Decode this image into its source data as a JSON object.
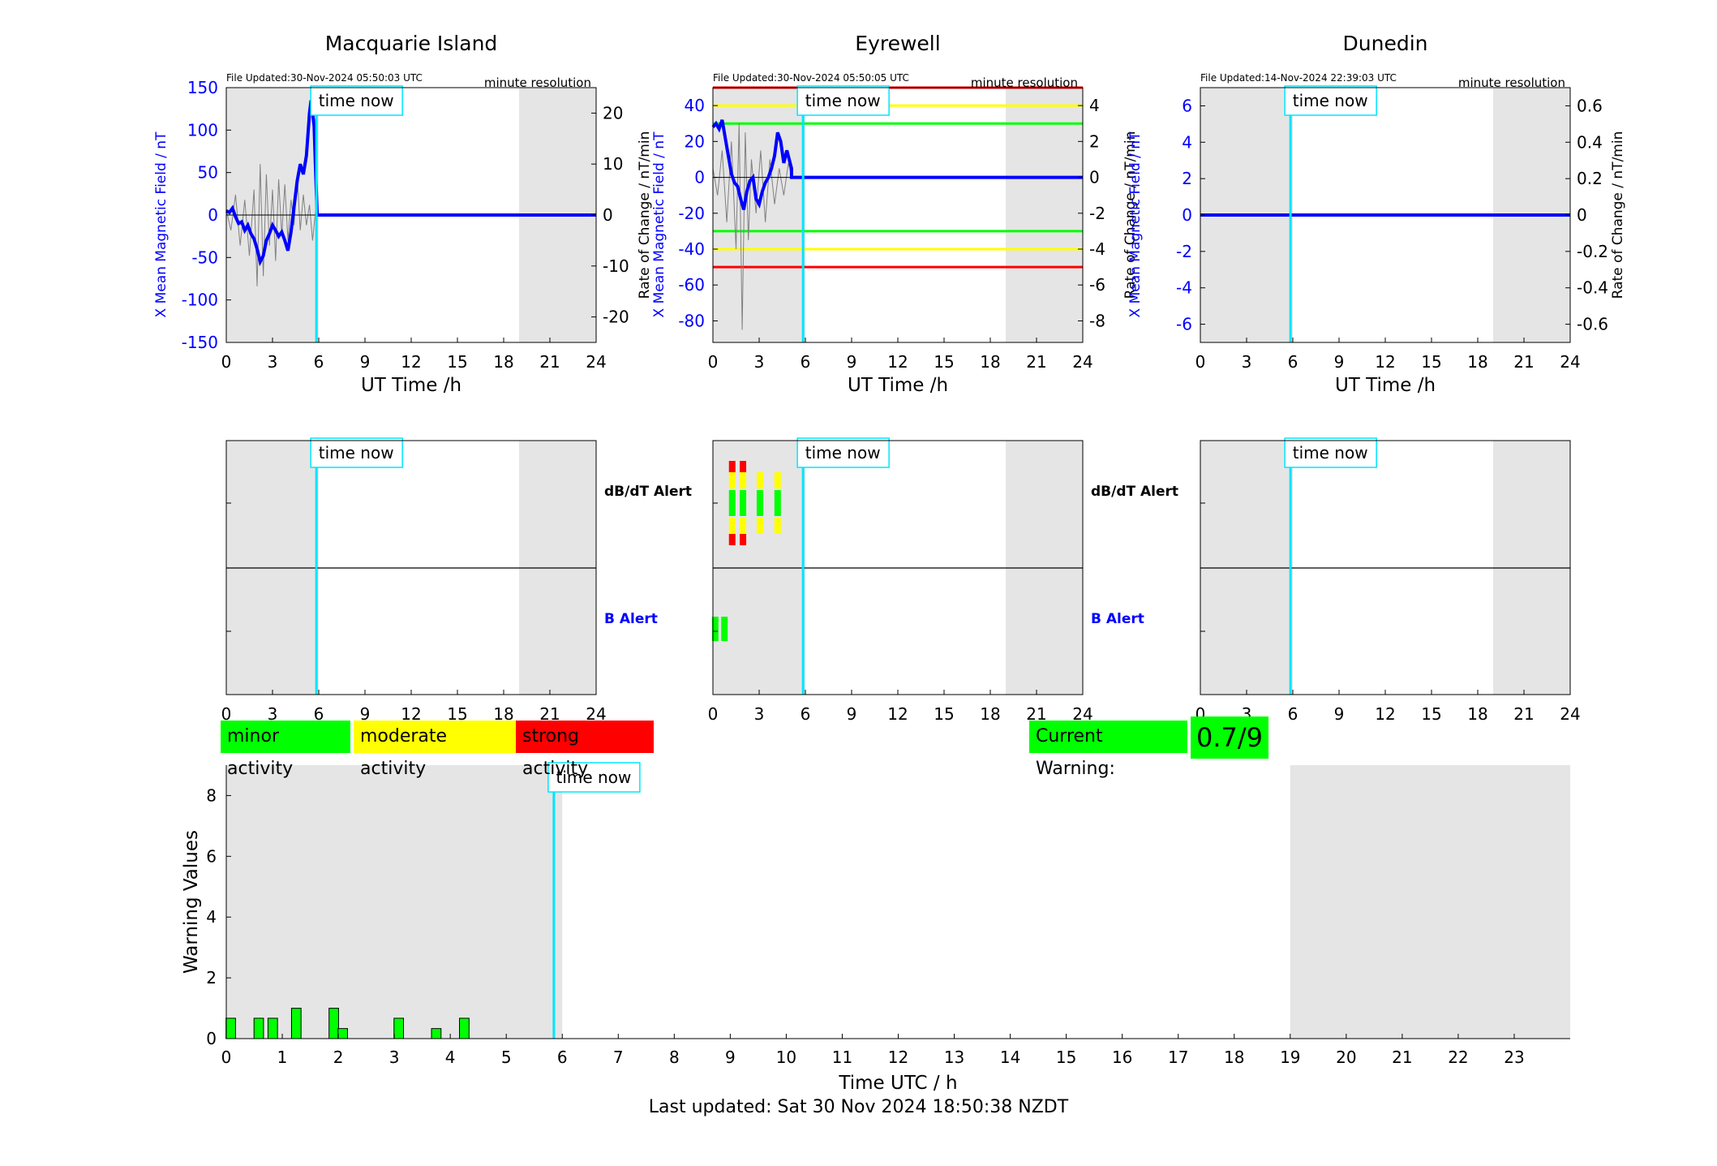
{
  "stations": [
    {
      "name": "Macquarie Island",
      "file_updated": "File Updated:30-Nov-2024 05:50:03 UTC",
      "resolution": "minute resolution",
      "y_label": "X Mean Magnetic Field / nT",
      "y2_label": "Rate of Change / nT/min",
      "x_label": "UT Time /h",
      "ylim": [
        -150,
        150
      ],
      "yticks": [
        -150,
        -100,
        -50,
        0,
        50,
        100,
        150
      ],
      "y2lim": [
        -25,
        25
      ],
      "y2ticks": [
        -20,
        -10,
        0,
        10,
        20
      ],
      "thresholds": [],
      "mean_field": [
        [
          0,
          5
        ],
        [
          0.2,
          3
        ],
        [
          0.4,
          8
        ],
        [
          0.6,
          -2
        ],
        [
          0.8,
          -10
        ],
        [
          1.0,
          -8
        ],
        [
          1.2,
          -18
        ],
        [
          1.4,
          -12
        ],
        [
          1.6,
          -22
        ],
        [
          1.8,
          -28
        ],
        [
          2.0,
          -40
        ],
        [
          2.2,
          -55
        ],
        [
          2.4,
          -48
        ],
        [
          2.6,
          -30
        ],
        [
          2.8,
          -22
        ],
        [
          3.0,
          -12
        ],
        [
          3.2,
          -18
        ],
        [
          3.4,
          -25
        ],
        [
          3.6,
          -20
        ],
        [
          3.8,
          -30
        ],
        [
          4.0,
          -42
        ],
        [
          4.2,
          -20
        ],
        [
          4.4,
          10
        ],
        [
          4.6,
          40
        ],
        [
          4.8,
          60
        ],
        [
          5.0,
          48
        ],
        [
          5.2,
          70
        ],
        [
          5.4,
          120
        ],
        [
          5.5,
          135
        ],
        [
          5.7,
          105
        ],
        [
          5.8,
          50
        ],
        [
          5.9,
          0
        ],
        [
          24,
          0
        ]
      ],
      "rate_of_change": [
        [
          0,
          1
        ],
        [
          0.3,
          -3
        ],
        [
          0.6,
          4
        ],
        [
          0.9,
          -6
        ],
        [
          1.2,
          3
        ],
        [
          1.5,
          -8
        ],
        [
          1.8,
          5
        ],
        [
          2.0,
          -14
        ],
        [
          2.2,
          10
        ],
        [
          2.4,
          -12
        ],
        [
          2.6,
          8
        ],
        [
          2.8,
          -6
        ],
        [
          3.0,
          5
        ],
        [
          3.2,
          -9
        ],
        [
          3.4,
          7
        ],
        [
          3.6,
          -4
        ],
        [
          3.8,
          6
        ],
        [
          4.0,
          -5
        ],
        [
          4.2,
          3
        ],
        [
          4.4,
          -2
        ],
        [
          4.6,
          8
        ],
        [
          4.8,
          -3
        ],
        [
          5.0,
          4
        ],
        [
          5.2,
          -2
        ],
        [
          5.4,
          2
        ],
        [
          5.6,
          -5
        ],
        [
          5.8,
          1
        ]
      ],
      "db_dt_alerts": [],
      "b_alerts": []
    },
    {
      "name": "Eyrewell",
      "file_updated": "File Updated:30-Nov-2024 05:50:05 UTC",
      "resolution": "minute resolution",
      "y_label": "X Mean Magnetic Field / nT",
      "y2_label": "Rate of Change / nT/min",
      "x_label": "UT Time /h",
      "ylim": [
        -92,
        50
      ],
      "yticks": [
        -80,
        -60,
        -40,
        -20,
        0,
        20,
        40
      ],
      "y2lim": [
        -9.2,
        5
      ],
      "y2ticks": [
        -8,
        -6,
        -4,
        -2,
        0,
        2,
        4
      ],
      "thresholds": [
        {
          "value": 50,
          "color": "#ff0000"
        },
        {
          "value": 40,
          "color": "#ffff00"
        },
        {
          "value": 30,
          "color": "#00ff00"
        },
        {
          "value": -30,
          "color": "#00ff00"
        },
        {
          "value": -40,
          "color": "#ffff00"
        },
        {
          "value": -50,
          "color": "#ff0000"
        }
      ],
      "mean_field": [
        [
          0,
          28
        ],
        [
          0.2,
          30
        ],
        [
          0.4,
          27
        ],
        [
          0.6,
          32
        ],
        [
          0.8,
          22
        ],
        [
          1.0,
          12
        ],
        [
          1.2,
          2
        ],
        [
          1.4,
          -3
        ],
        [
          1.6,
          -5
        ],
        [
          1.8,
          -12
        ],
        [
          2.0,
          -18
        ],
        [
          2.2,
          -8
        ],
        [
          2.4,
          -2
        ],
        [
          2.6,
          0
        ],
        [
          2.8,
          -12
        ],
        [
          3.0,
          -15
        ],
        [
          3.2,
          -8
        ],
        [
          3.4,
          -3
        ],
        [
          3.6,
          0
        ],
        [
          3.8,
          5
        ],
        [
          4.0,
          12
        ],
        [
          4.2,
          25
        ],
        [
          4.4,
          20
        ],
        [
          4.6,
          8
        ],
        [
          4.8,
          15
        ],
        [
          5.1,
          5
        ],
        [
          5.1,
          0
        ],
        [
          24,
          0
        ]
      ],
      "rate_of_change": [
        [
          0,
          0.5
        ],
        [
          0.3,
          -1
        ],
        [
          0.6,
          1.5
        ],
        [
          0.9,
          -2.5
        ],
        [
          1.2,
          2
        ],
        [
          1.5,
          -4
        ],
        [
          1.7,
          3
        ],
        [
          1.9,
          -8.5
        ],
        [
          2.1,
          2.5
        ],
        [
          2.3,
          -3.5
        ],
        [
          2.5,
          1
        ],
        [
          2.8,
          -2
        ],
        [
          3.1,
          1.5
        ],
        [
          3.4,
          -2.5
        ],
        [
          3.7,
          1
        ],
        [
          4.0,
          -1.5
        ],
        [
          4.3,
          0.5
        ],
        [
          4.6,
          -1
        ],
        [
          4.9,
          0.8
        ],
        [
          5.1,
          0
        ]
      ],
      "db_dt_alerts": [
        {
          "t": 1.25,
          "level": "strong"
        },
        {
          "t": 1.95,
          "level": "strong"
        },
        {
          "t": 3.05,
          "level": "moderate"
        },
        {
          "t": 4.2,
          "level": "moderate"
        }
      ],
      "b_alerts": [
        {
          "t": 0.15,
          "level": "minor"
        },
        {
          "t": 0.75,
          "level": "minor"
        }
      ]
    },
    {
      "name": "Dunedin",
      "file_updated": "File Updated:14-Nov-2024 22:39:03 UTC",
      "resolution": "minute resolution",
      "y_label": "X Mean Magnetic Field / nT",
      "y2_label": "Rate of Change / nT/min",
      "x_label": "UT Time /h",
      "ylim": [
        -7,
        7
      ],
      "yticks": [
        -6,
        -4,
        -2,
        0,
        2,
        4,
        6
      ],
      "y2lim": [
        -0.7,
        0.7
      ],
      "y2ticks": [
        -0.6,
        -0.4,
        -0.2,
        0,
        0.2,
        0.4,
        0.6
      ],
      "thresholds": [],
      "mean_field": [
        [
          0,
          0
        ],
        [
          24,
          0
        ]
      ],
      "rate_of_change": [],
      "db_dt_alerts": [],
      "b_alerts": []
    }
  ],
  "time_now_label": "time now",
  "time_now_h": 5.85,
  "station_xticks": [
    0,
    3,
    6,
    9,
    12,
    15,
    18,
    21,
    24
  ],
  "db_dt_alert_label": "dB/dT Alert",
  "b_alert_label": "B Alert",
  "shade_ranges_h": [
    [
      0,
      6
    ],
    [
      19,
      24
    ]
  ],
  "legend": [
    {
      "label": "minor activity",
      "color": "#00ff00"
    },
    {
      "label": "moderate activity",
      "color": "#ffff00"
    },
    {
      "label": "strong activity",
      "color": "#ff0000"
    }
  ],
  "current_warning_label": "Current Warning:",
  "current_warning_value": "0.7/9",
  "warning_chart": {
    "xlabel": "Time UTC / h",
    "ylabel": "Warning Values",
    "ylim": [
      0,
      9
    ],
    "yticks": [
      0,
      2,
      4,
      6,
      8
    ],
    "xlim": [
      0,
      24
    ],
    "xticks": [
      0,
      1,
      2,
      3,
      4,
      5,
      6,
      7,
      8,
      9,
      10,
      11,
      12,
      13,
      14,
      15,
      16,
      17,
      18,
      19,
      20,
      21,
      22,
      23
    ],
    "shade_ranges_h": [
      [
        0,
        6
      ],
      [
        19,
        24
      ]
    ]
  },
  "chart_data": {
    "type": "bar",
    "title": "",
    "xlabel": "Time UTC / h",
    "ylabel": "Warning Values",
    "ylim": [
      0,
      9
    ],
    "x": [
      0.08,
      0.58,
      0.83,
      1.25,
      1.92,
      2.08,
      3.08,
      3.75,
      4.25
    ],
    "values": [
      0.67,
      0.67,
      0.67,
      1.0,
      1.0,
      0.33,
      0.67,
      0.33,
      0.67
    ],
    "bar_color": "#00ff00"
  },
  "footer": "Last updated: Sat 30 Nov 2024 18:50:38 NZDT",
  "colors": {
    "shade": "#e5e5e5",
    "time_now": "#00e5ff",
    "mean_field": "#0000ff",
    "axis_blue": "#0000ff",
    "rate_trace": "#808080",
    "minor": "#00ff00",
    "moderate": "#ffff00",
    "strong": "#ff0000"
  }
}
